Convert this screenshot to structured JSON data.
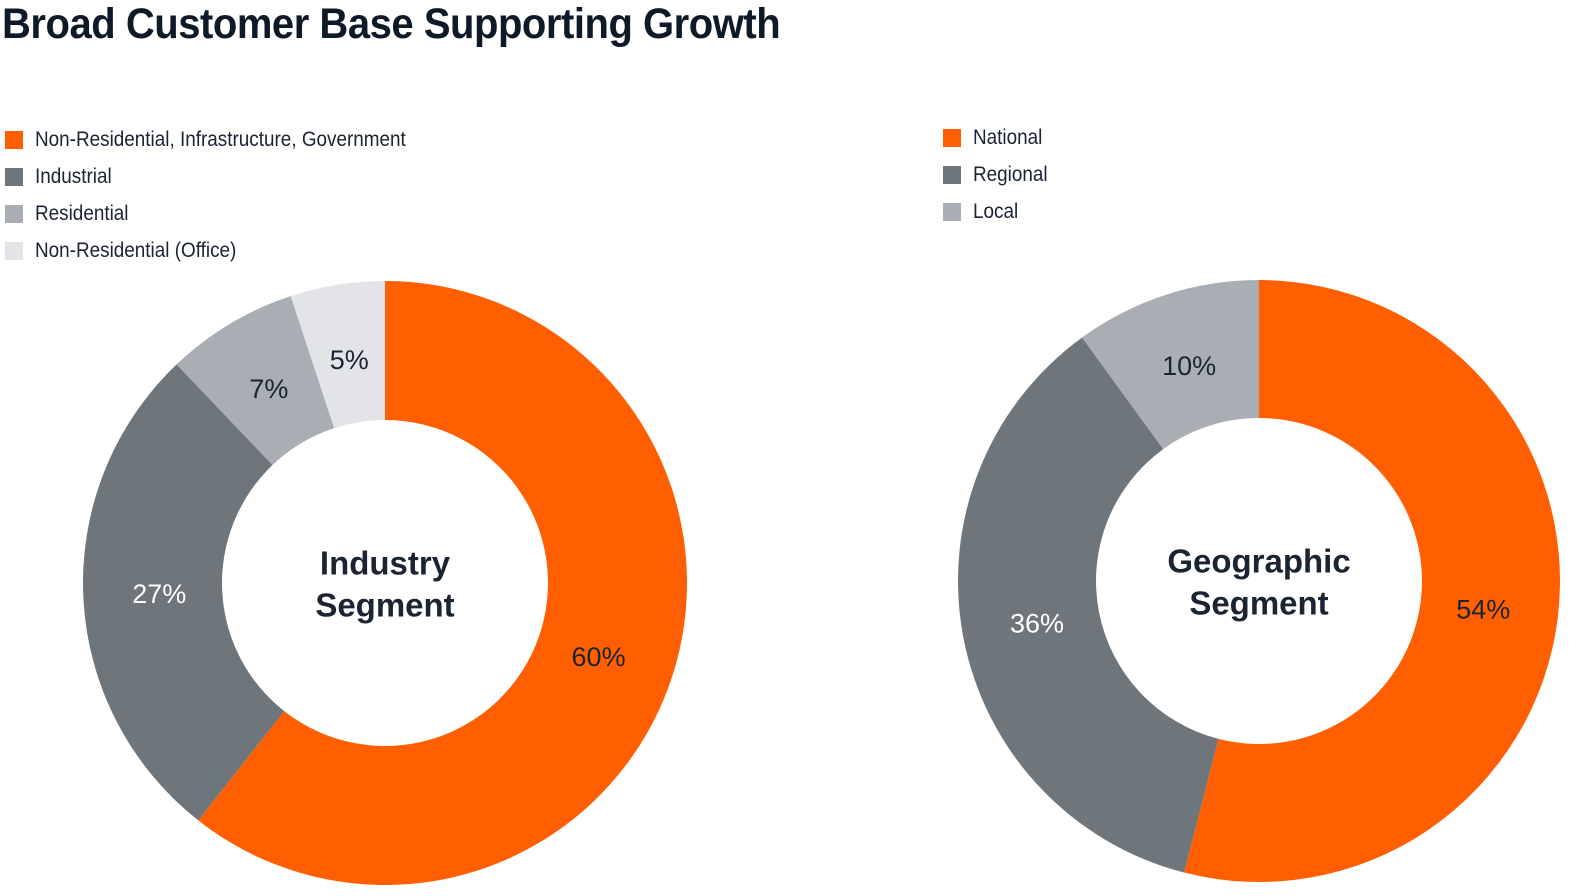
{
  "title": "Broad Customer Base Supporting Growth",
  "chart_data": [
    {
      "type": "pie",
      "variant": "donut",
      "center_label": [
        "Industry",
        "Segment"
      ],
      "legend_position": "top-left",
      "categories": [
        "Non-Residential, Infrastructure, Government",
        "Industrial",
        "Residential",
        "Non-Residential (Office)"
      ],
      "values": [
        60,
        27,
        7,
        5
      ],
      "labels": [
        "60%",
        "27%",
        "7%",
        "5%"
      ],
      "colors": [
        "#ff5f00",
        "#6e757b",
        "#a9aeb4",
        "#e2e4e8"
      ],
      "label_colors": [
        "#1a2433",
        "#ffffff",
        "#1a2433",
        "#1a2433"
      ]
    },
    {
      "type": "pie",
      "variant": "donut",
      "center_label": [
        "Geographic",
        "Segment"
      ],
      "legend_position": "top-left",
      "categories": [
        "National",
        "Regional",
        "Local"
      ],
      "values": [
        54,
        36,
        10
      ],
      "labels": [
        "54%",
        "36%",
        "10%"
      ],
      "colors": [
        "#ff5f00",
        "#6e757b",
        "#a9aeb4"
      ],
      "label_colors": [
        "#1a2433",
        "#ffffff",
        "#1a2433"
      ]
    }
  ]
}
